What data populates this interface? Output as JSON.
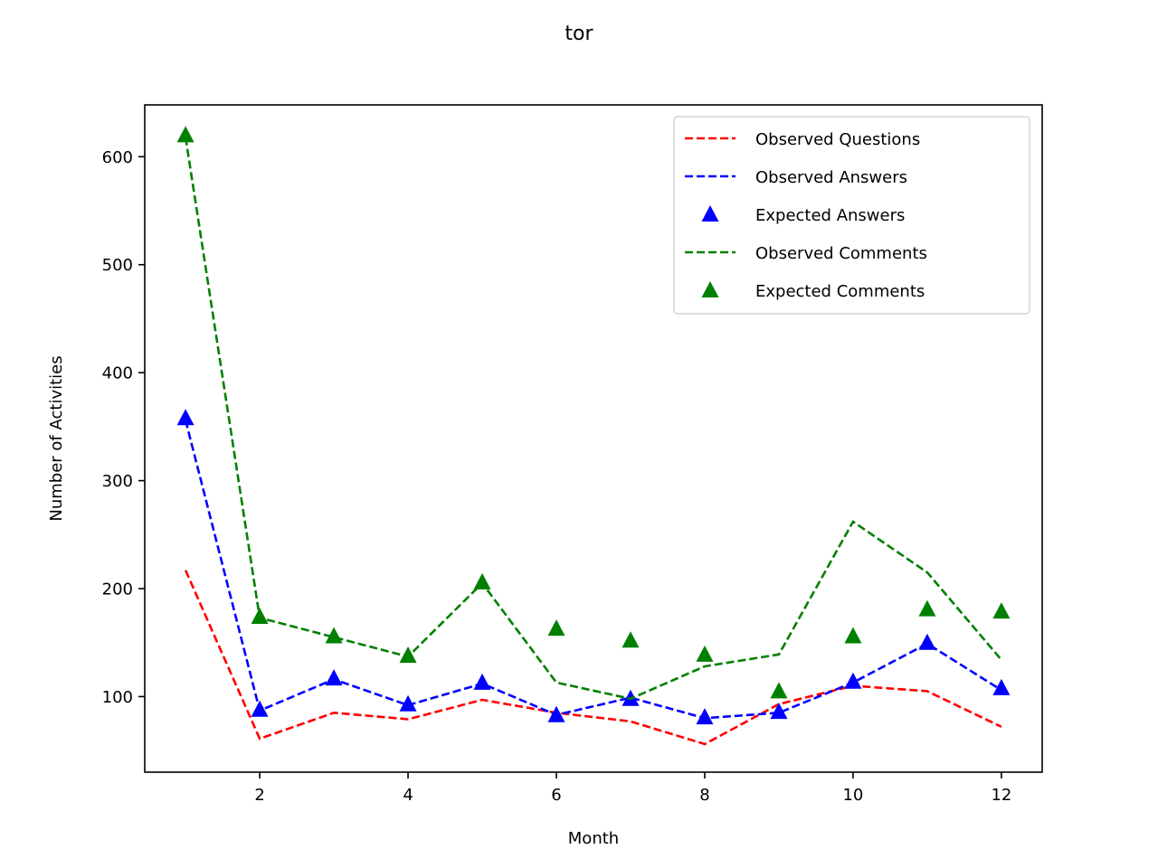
{
  "chart_data": {
    "type": "line",
    "title": "tor",
    "xlabel": "Month",
    "ylabel": "Number of Activities",
    "xlim": [
      0.45,
      12.55
    ],
    "ylim": [
      30,
      648
    ],
    "xticks": [
      2,
      4,
      6,
      8,
      10,
      12
    ],
    "yticks": [
      100,
      200,
      300,
      400,
      500,
      600
    ],
    "grid": false,
    "legend_position": "top-right",
    "x": [
      1,
      2,
      3,
      4,
      5,
      6,
      7,
      8,
      9,
      10,
      11,
      12
    ],
    "series": [
      {
        "name": "Observed Questions",
        "style": "dashed-line",
        "color": "#ff0000",
        "values": [
          217,
          61,
          85,
          79,
          97,
          85,
          77,
          56,
          93,
          110,
          105,
          72
        ]
      },
      {
        "name": "Observed Answers",
        "style": "dashed-line",
        "color": "#0000ff",
        "values": [
          356,
          87,
          116,
          92,
          112,
          83,
          99,
          80,
          85,
          113,
          149,
          106
        ]
      },
      {
        "name": "Expected Answers",
        "style": "triangle-marker",
        "color": "#0000ff",
        "values": [
          358,
          88,
          117,
          93,
          113,
          83,
          98,
          81,
          86,
          114,
          150,
          108
        ]
      },
      {
        "name": "Observed Comments",
        "style": "dashed-line",
        "color": "#008000",
        "values": [
          618,
          173,
          155,
          137,
          205,
          113,
          98,
          128,
          139,
          262,
          215,
          134
        ]
      },
      {
        "name": "Expected Comments",
        "style": "triangle-marker",
        "color": "#008000",
        "values": [
          620,
          174,
          156,
          138,
          206,
          163,
          152,
          139,
          105,
          156,
          181,
          179
        ]
      }
    ]
  }
}
